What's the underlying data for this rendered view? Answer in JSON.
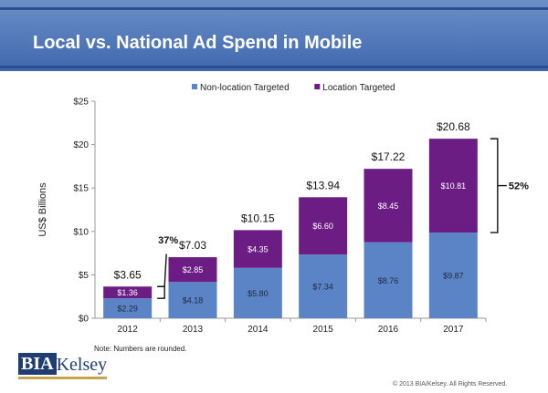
{
  "header": {
    "title": "Local vs. National Ad Spend in Mobile"
  },
  "colors": {
    "banner": "#4a72b5",
    "non_location": "#5b84c7",
    "location": "#6b1d83"
  },
  "chart_data": {
    "type": "bar",
    "stacked": true,
    "categories": [
      "2012",
      "2013",
      "2014",
      "2015",
      "2016",
      "2017"
    ],
    "series": [
      {
        "name": "Non-location Targeted",
        "color": "#5b84c7",
        "values": [
          2.29,
          4.18,
          5.8,
          7.34,
          8.76,
          9.87
        ],
        "labels": [
          "$2.29",
          "$4.18",
          "$5.80",
          "$7.34",
          "$8.76",
          "$9.87"
        ]
      },
      {
        "name": "Location Targeted",
        "color": "#6b1d83",
        "values": [
          1.36,
          2.85,
          4.35,
          6.6,
          8.45,
          10.81
        ],
        "labels": [
          "$1.36",
          "$2.85",
          "$4.35",
          "$6.60",
          "$8.45",
          "$10.81"
        ]
      }
    ],
    "totals": [
      "$3.65",
      "$7.03",
      "$10.15",
      "$13.94",
      "$17.22",
      "$20.68"
    ],
    "ylabel": "US$ Billions",
    "ylim": [
      0,
      25
    ],
    "yticks": [
      "$0",
      "$5",
      "$10",
      "$15",
      "$20",
      "$25"
    ],
    "legend_position": "top",
    "annotations": [
      {
        "text": "37%",
        "bracket_category": "2012"
      },
      {
        "text": "52%",
        "bracket_category": "2017"
      }
    ]
  },
  "note": "Note: Numbers are rounded.",
  "logo": {
    "part1": "BIA",
    "part2": "Kelsey"
  },
  "copyright": "© 2013 BIA/Kelsey. All Rights Reserved."
}
